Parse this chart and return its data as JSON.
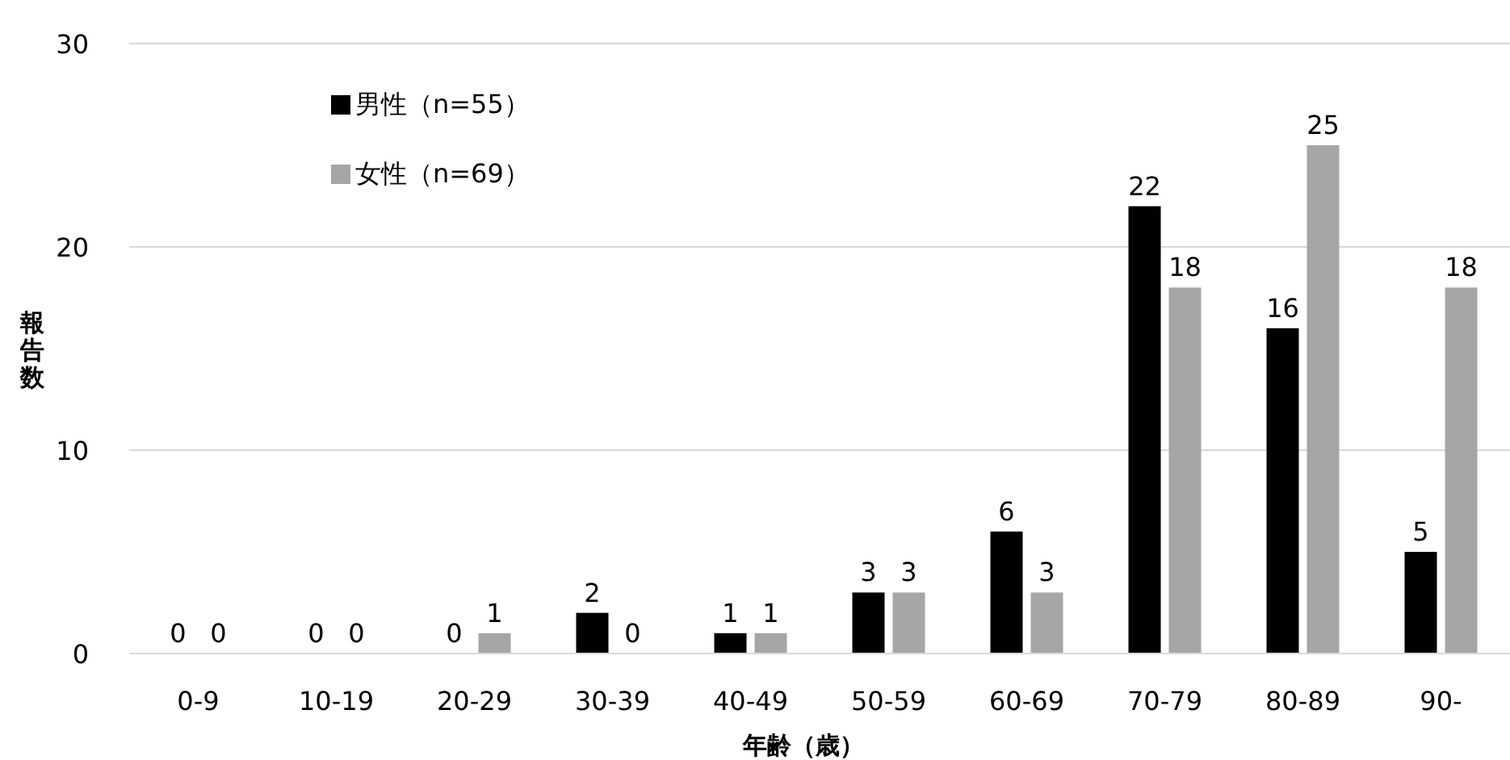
{
  "chart_data": {
    "type": "bar",
    "xlabel": "年齢（歳）",
    "ylabel": "報告数",
    "categories": [
      "0-9",
      "10-19",
      "20-29",
      "30-39",
      "40-49",
      "50-59",
      "60-69",
      "70-79",
      "80-89",
      "90-"
    ],
    "series": [
      {
        "name": "男性（n=55）",
        "color": "#000000",
        "values": [
          0,
          0,
          0,
          2,
          1,
          3,
          6,
          22,
          16,
          5
        ]
      },
      {
        "name": "女性（n=69）",
        "color": "#a6a6a6",
        "values": [
          0,
          0,
          1,
          0,
          1,
          3,
          3,
          18,
          25,
          18
        ]
      }
    ],
    "ylim": [
      0,
      30
    ],
    "yticks": [
      0,
      10,
      20,
      30
    ],
    "grid": "y",
    "legend": "top left",
    "data_labels": true
  }
}
